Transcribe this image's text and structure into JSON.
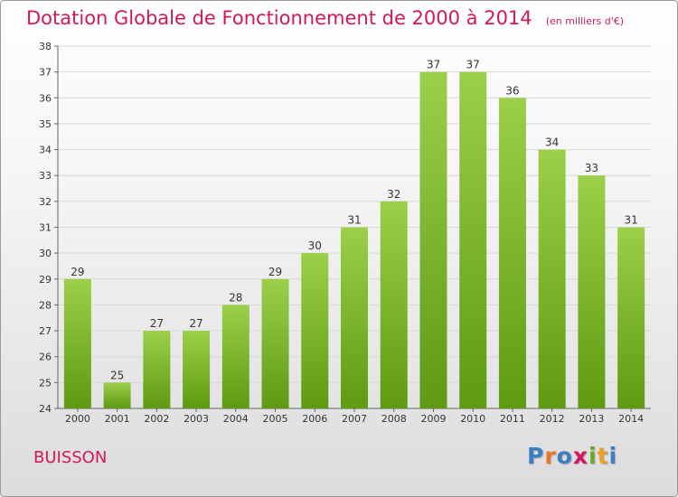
{
  "header": {
    "title": "Dotation Globale de Fonctionnement de 2000 à 2014",
    "unit_note": "(en milliers d'€)"
  },
  "footer": {
    "commune": "BUISSON",
    "logo_text": "Proxiti"
  },
  "colors": {
    "title": "#d2185a",
    "bar_top": "#9ccf4a",
    "bar_bottom": "#5e9a12",
    "grid": "#d8d8d8",
    "axis": "#666666",
    "logo": [
      "#3a7fc6",
      "#e8762c",
      "#3a7fc6",
      "#d2185a",
      "#6aa82a",
      "#e8a22c",
      "#3a7fc6"
    ]
  },
  "chart_data": {
    "type": "bar",
    "title": "Dotation Globale de Fonctionnement de 2000 à 2014",
    "subtitle": "(en milliers d'€)",
    "xlabel": "",
    "ylabel": "",
    "categories": [
      "2000",
      "2001",
      "2002",
      "2003",
      "2004",
      "2005",
      "2006",
      "2007",
      "2008",
      "2009",
      "2010",
      "2011",
      "2012",
      "2013",
      "2014"
    ],
    "values": [
      29,
      25,
      27,
      27,
      28,
      29,
      30,
      31,
      32,
      37,
      37,
      36,
      34,
      33,
      31
    ],
    "ylim": [
      24,
      38
    ],
    "yticks": [
      24,
      25,
      26,
      27,
      28,
      29,
      30,
      31,
      32,
      33,
      34,
      35,
      36,
      37,
      38
    ],
    "grid": true,
    "data_labels": true,
    "legend": "none"
  }
}
